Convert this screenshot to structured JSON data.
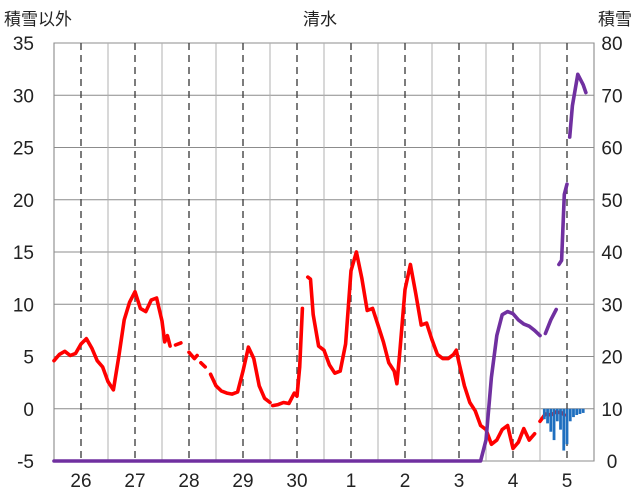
{
  "chart_data": {
    "type": "line",
    "title": "清水",
    "left_axis_label": "積雪以外",
    "right_axis_label": "積雪",
    "left_ylim": [
      -5,
      35
    ],
    "right_ylim": [
      0,
      80
    ],
    "left_ticks": [
      "35",
      "30",
      "25",
      "20",
      "15",
      "10",
      "5",
      "0",
      "-5"
    ],
    "right_ticks": [
      "80",
      "70",
      "60",
      "50",
      "40",
      "30",
      "20",
      "10",
      "0"
    ],
    "x_ticks": [
      "26",
      "27",
      "28",
      "29",
      "30",
      "1",
      "2",
      "3",
      "4",
      "5"
    ],
    "grid": true,
    "series": [
      {
        "key": "temp",
        "axis": "left",
        "color": "#ff0000",
        "style": "line",
        "points": [
          [
            0.0,
            4.6
          ],
          [
            0.1,
            5.2
          ],
          [
            0.2,
            5.5
          ],
          [
            0.3,
            5.1
          ],
          [
            0.4,
            5.3
          ],
          [
            0.5,
            6.2
          ],
          [
            0.6,
            6.7
          ],
          [
            0.7,
            5.8
          ],
          [
            0.8,
            4.6
          ],
          [
            0.9,
            4.0
          ],
          [
            1.0,
            2.6
          ],
          [
            1.1,
            1.8
          ],
          [
            1.2,
            5.0
          ],
          [
            1.3,
            8.5
          ],
          [
            1.4,
            10.2
          ],
          [
            1.5,
            11.2
          ],
          [
            1.6,
            9.6
          ],
          [
            1.7,
            9.3
          ],
          [
            1.8,
            10.4
          ],
          [
            1.9,
            10.6
          ],
          [
            2.0,
            8.4
          ],
          [
            2.05,
            6.4
          ],
          [
            2.1,
            7.0
          ],
          [
            2.15,
            6.0
          ],
          null,
          [
            2.25,
            6.1
          ],
          [
            2.35,
            6.3
          ],
          null,
          [
            2.5,
            5.4
          ],
          [
            2.6,
            4.8
          ],
          [
            2.65,
            5.1
          ],
          null,
          [
            2.72,
            4.4
          ],
          [
            2.8,
            4.0
          ],
          null,
          [
            2.9,
            3.3
          ],
          [
            3.0,
            2.2
          ],
          [
            3.1,
            1.7
          ],
          [
            3.2,
            1.5
          ],
          [
            3.3,
            1.4
          ],
          [
            3.4,
            1.6
          ],
          [
            3.5,
            3.6
          ],
          [
            3.6,
            5.9
          ],
          [
            3.7,
            4.8
          ],
          [
            3.8,
            2.2
          ],
          [
            3.9,
            1.0
          ],
          [
            4.0,
            0.6
          ],
          null,
          [
            4.05,
            0.3
          ],
          [
            4.15,
            0.4
          ],
          [
            4.25,
            0.6
          ],
          [
            4.35,
            0.5
          ],
          [
            4.45,
            1.5
          ],
          [
            4.5,
            1.2
          ],
          [
            4.55,
            4.0
          ],
          [
            4.6,
            9.6
          ],
          null,
          [
            4.7,
            12.6
          ],
          [
            4.75,
            12.4
          ],
          [
            4.8,
            9.0
          ],
          [
            4.9,
            6.0
          ],
          [
            5.0,
            5.6
          ],
          [
            5.1,
            4.2
          ],
          [
            5.2,
            3.4
          ],
          [
            5.3,
            3.6
          ],
          [
            5.4,
            6.2
          ],
          [
            5.5,
            13.2
          ],
          [
            5.6,
            15.0
          ],
          [
            5.7,
            12.5
          ],
          [
            5.8,
            9.4
          ],
          [
            5.9,
            9.6
          ],
          [
            6.0,
            8.0
          ],
          [
            6.1,
            6.4
          ],
          [
            6.2,
            4.4
          ],
          [
            6.3,
            3.6
          ],
          [
            6.35,
            2.4
          ],
          [
            6.4,
            5.2
          ],
          [
            6.5,
            11.4
          ],
          [
            6.6,
            13.8
          ],
          [
            6.7,
            11.0
          ],
          [
            6.8,
            8.0
          ],
          [
            6.9,
            8.2
          ],
          [
            7.0,
            6.6
          ],
          [
            7.1,
            5.2
          ],
          [
            7.2,
            4.8
          ],
          [
            7.3,
            4.8
          ],
          [
            7.4,
            5.2
          ],
          [
            7.45,
            5.6
          ],
          [
            7.5,
            4.4
          ],
          [
            7.6,
            2.2
          ],
          [
            7.7,
            0.6
          ],
          [
            7.8,
            -0.2
          ],
          [
            7.9,
            -1.6
          ],
          [
            8.0,
            -2.0
          ],
          [
            8.1,
            -3.4
          ],
          [
            8.2,
            -3.0
          ],
          [
            8.3,
            -2.0
          ],
          [
            8.4,
            -1.6
          ],
          [
            8.5,
            -3.8
          ],
          [
            8.6,
            -3.2
          ],
          [
            8.7,
            -1.9
          ],
          [
            8.8,
            -3.0
          ],
          [
            8.9,
            -2.4
          ],
          null,
          [
            9.0,
            -1.2
          ],
          [
            9.1,
            -0.5
          ],
          [
            9.2,
            -0.6
          ],
          [
            9.3,
            -0.3
          ],
          [
            9.4,
            -0.4
          ],
          [
            9.45,
            -0.6
          ]
        ]
      },
      {
        "key": "snow",
        "axis": "right",
        "color": "#7030a0",
        "style": "line",
        "points": [
          [
            0.0,
            0
          ],
          [
            7.9,
            0
          ],
          [
            8.0,
            4.0
          ],
          [
            8.05,
            10.0
          ],
          [
            8.1,
            16.0
          ],
          [
            8.2,
            24.0
          ],
          [
            8.3,
            28.0
          ],
          [
            8.4,
            28.6
          ],
          [
            8.5,
            28.2
          ],
          [
            8.6,
            27.0
          ],
          [
            8.7,
            26.2
          ],
          [
            8.8,
            25.8
          ],
          [
            8.9,
            25.0
          ],
          [
            9.0,
            24.0
          ],
          null,
          [
            9.1,
            24.4
          ],
          [
            9.2,
            27.0
          ],
          [
            9.3,
            29.0
          ],
          null,
          [
            9.35,
            37.6
          ],
          [
            9.4,
            38.4
          ],
          [
            9.45,
            51.0
          ],
          [
            9.5,
            53.0
          ],
          null,
          [
            9.55,
            62.0
          ],
          [
            9.6,
            68.0
          ],
          [
            9.7,
            74.0
          ],
          [
            9.8,
            72.0
          ],
          [
            9.85,
            70.5
          ]
        ]
      },
      {
        "key": "precip",
        "axis": "left",
        "color": "#1f6fbf",
        "style": "bars",
        "points": [
          [
            9.08,
            -1.0
          ],
          [
            9.14,
            -1.4
          ],
          [
            9.2,
            -2.2
          ],
          [
            9.26,
            -3.0
          ],
          [
            9.32,
            -1.2
          ],
          [
            9.38,
            -2.0
          ],
          [
            9.44,
            -4.0
          ],
          [
            9.5,
            -3.4
          ],
          [
            9.56,
            -1.2
          ],
          [
            9.62,
            -0.8
          ],
          [
            9.68,
            -0.6
          ],
          [
            9.74,
            -0.5
          ],
          [
            9.8,
            -0.4
          ]
        ]
      }
    ]
  }
}
